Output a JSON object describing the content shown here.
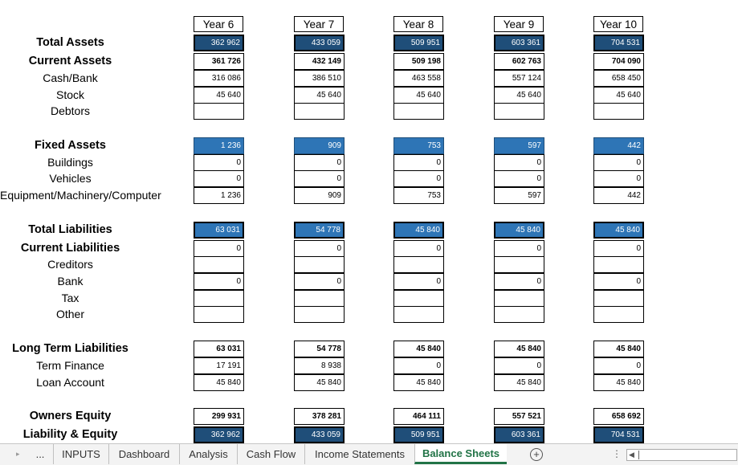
{
  "headers": [
    "Year 6",
    "Year 7",
    "Year 8",
    "Year 9",
    "Year 10"
  ],
  "rows": [
    {
      "label": "Total Assets",
      "bold": true,
      "style": "dark",
      "values": [
        "362 962",
        "433 059",
        "509 951",
        "603 361",
        "704 531"
      ]
    },
    {
      "label": "Current Assets",
      "bold": true,
      "style": "boldtext",
      "values": [
        "361 726",
        "432 149",
        "509 198",
        "602 763",
        "704 090"
      ]
    },
    {
      "label": "Cash/Bank",
      "bold": false,
      "style": "plain",
      "values": [
        "316 086",
        "386 510",
        "463 558",
        "557 124",
        "658 450"
      ]
    },
    {
      "label": "Stock",
      "bold": false,
      "style": "plain",
      "values": [
        "45 640",
        "45 640",
        "45 640",
        "45 640",
        "45 640"
      ]
    },
    {
      "label": "Debtors",
      "bold": false,
      "style": "plain",
      "values": [
        "",
        "",
        "",
        "",
        ""
      ]
    },
    {
      "label": "Fixed Assets",
      "bold": true,
      "style": "blue",
      "values": [
        "1 236",
        "909",
        "753",
        "597",
        "442"
      ]
    },
    {
      "label": "Buildings",
      "bold": false,
      "style": "plain",
      "values": [
        "0",
        "0",
        "0",
        "0",
        "0"
      ]
    },
    {
      "label": "Vehicles",
      "bold": false,
      "style": "plain",
      "values": [
        "0",
        "0",
        "0",
        "0",
        "0"
      ]
    },
    {
      "label": "Equipment/Machinery/Computer",
      "bold": false,
      "style": "plain",
      "values": [
        "1 236",
        "909",
        "753",
        "597",
        "442"
      ]
    },
    {
      "label": "Total Liabilities",
      "bold": true,
      "style": "blueb",
      "values": [
        "63 031",
        "54 778",
        "45 840",
        "45 840",
        "45 840"
      ]
    },
    {
      "label": "Current Liabilities",
      "bold": true,
      "style": "plain",
      "values": [
        "0",
        "0",
        "0",
        "0",
        "0"
      ]
    },
    {
      "label": "Creditors",
      "bold": false,
      "style": "plain",
      "values": [
        "",
        "",
        "",
        "",
        ""
      ]
    },
    {
      "label": "Bank",
      "bold": false,
      "style": "plain",
      "values": [
        "0",
        "0",
        "0",
        "0",
        "0"
      ]
    },
    {
      "label": "Tax",
      "bold": false,
      "style": "plain",
      "values": [
        "",
        "",
        "",
        "",
        ""
      ]
    },
    {
      "label": "Other",
      "bold": false,
      "style": "plain",
      "values": [
        "",
        "",
        "",
        "",
        ""
      ]
    },
    {
      "label": "Long Term Liabilities",
      "bold": true,
      "style": "boldtext",
      "values": [
        "63 031",
        "54 778",
        "45 840",
        "45 840",
        "45 840"
      ]
    },
    {
      "label": "Term Finance",
      "bold": false,
      "style": "plain",
      "values": [
        "17 191",
        "8 938",
        "0",
        "0",
        "0"
      ]
    },
    {
      "label": "Loan Account",
      "bold": false,
      "style": "plain",
      "values": [
        "45 840",
        "45 840",
        "45 840",
        "45 840",
        "45 840"
      ]
    },
    {
      "label": "Owners Equity",
      "bold": true,
      "style": "boldtext",
      "values": [
        "299 931",
        "378 281",
        "464 111",
        "557 521",
        "658 692"
      ]
    },
    {
      "label": "Liability & Equity",
      "bold": true,
      "style": "dark",
      "values": [
        "362 962",
        "433 059",
        "509 951",
        "603 361",
        "704 531"
      ]
    }
  ],
  "tabs": {
    "more": "...",
    "items": [
      "INPUTS",
      "Dashboard",
      "Analysis",
      "Cash Flow",
      "Income Statements",
      "Balance Sheets"
    ],
    "active": "Balance Sheets",
    "add_icon": "plus-circle-icon",
    "options_icon": "vertical-dots-icon"
  }
}
